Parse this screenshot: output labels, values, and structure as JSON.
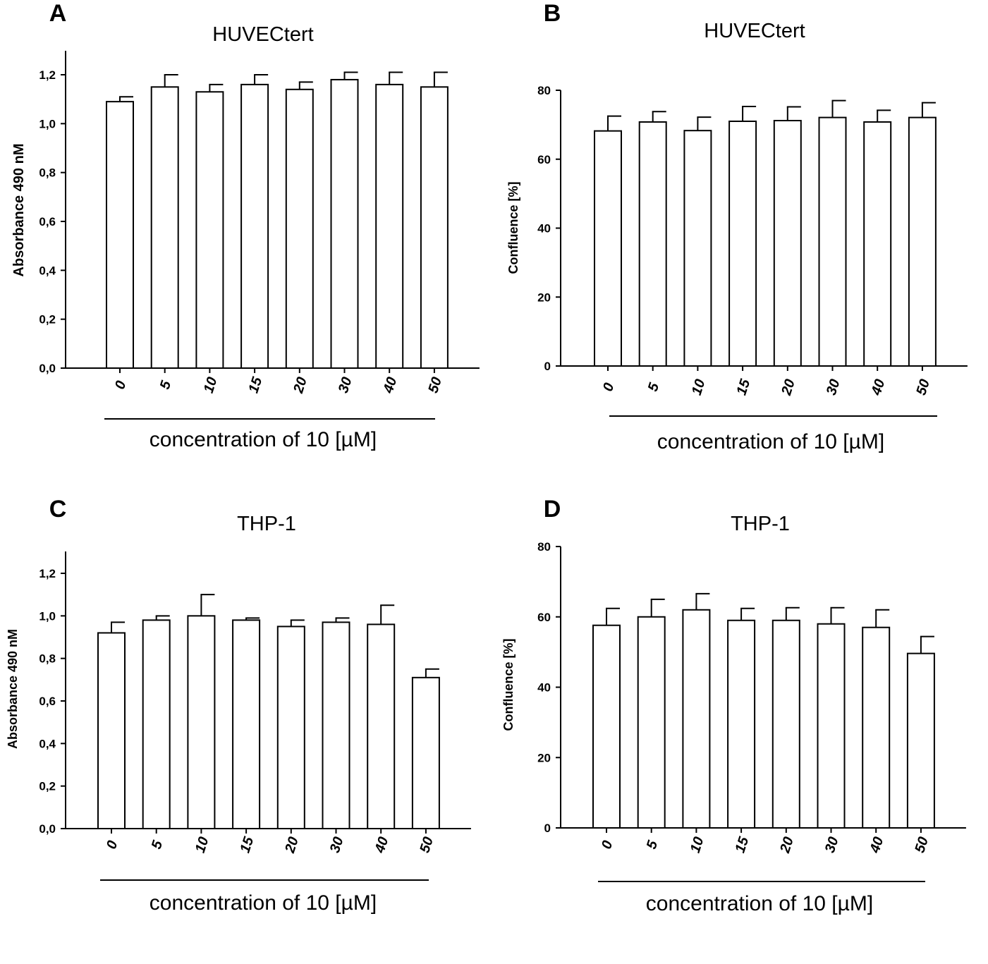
{
  "chart_data": [
    {
      "panel": "A",
      "type": "bar",
      "title": "HUVECtert",
      "ylabel": "Absorbance 490 nM",
      "xlabel": "concentration of 10 [µM]",
      "categories": [
        "0",
        "5",
        "10",
        "15",
        "20",
        "30",
        "40",
        "50"
      ],
      "values": [
        1.09,
        1.15,
        1.13,
        1.16,
        1.14,
        1.18,
        1.16,
        1.15
      ],
      "errors": [
        0.02,
        0.05,
        0.03,
        0.04,
        0.03,
        0.03,
        0.05,
        0.06
      ],
      "ylim": [
        0,
        1.3
      ],
      "yticks": [
        0.0,
        0.2,
        0.4,
        0.6,
        0.8,
        1.0,
        1.2
      ],
      "ytick_labels": [
        "0,0",
        "0,2",
        "0,4",
        "0,6",
        "0,8",
        "1,0",
        "1,2"
      ]
    },
    {
      "panel": "B",
      "type": "bar",
      "title": "HUVECtert",
      "ylabel": "Confluence [%]",
      "xlabel": "concentration of 10 [µM]",
      "categories": [
        "0",
        "5",
        "10",
        "15",
        "20",
        "30",
        "40",
        "50"
      ],
      "values": [
        68.2,
        70.8,
        68.3,
        71.0,
        71.2,
        72.1,
        70.8,
        72.1
      ],
      "errors": [
        4.3,
        3.0,
        3.9,
        4.3,
        4.0,
        4.9,
        3.4,
        4.3
      ],
      "ylim": [
        0,
        80
      ],
      "yticks": [
        0,
        20,
        40,
        60,
        80
      ],
      "ytick_labels": [
        "0",
        "20",
        "40",
        "60",
        "80"
      ]
    },
    {
      "panel": "C",
      "type": "bar",
      "title": "THP-1",
      "ylabel": "Absorbance 490 nM",
      "xlabel": "concentration of 10 [µM]",
      "categories": [
        "0",
        "5",
        "10",
        "15",
        "20",
        "30",
        "40",
        "50"
      ],
      "values": [
        0.92,
        0.98,
        1.0,
        0.98,
        0.95,
        0.97,
        0.96,
        0.71
      ],
      "errors": [
        0.05,
        0.02,
        0.1,
        0.01,
        0.03,
        0.02,
        0.09,
        0.04
      ],
      "ylim": [
        0,
        1.3
      ],
      "yticks": [
        0.0,
        0.2,
        0.4,
        0.6,
        0.8,
        1.0,
        1.2
      ],
      "ytick_labels": [
        "0,0",
        "0,2",
        "0,4",
        "0,6",
        "0,8",
        "1,0",
        "1,2"
      ]
    },
    {
      "panel": "D",
      "type": "bar",
      "title": "THP-1",
      "ylabel": "Confluence [%]",
      "xlabel": "concentration of 10 [µM]",
      "categories": [
        "0",
        "5",
        "10",
        "15",
        "20",
        "30",
        "40",
        "50"
      ],
      "values": [
        57.6,
        60.0,
        62.0,
        59.0,
        59.0,
        58.0,
        57.0,
        49.6
      ],
      "errors": [
        4.8,
        5.0,
        4.6,
        3.4,
        3.6,
        4.6,
        5.0,
        4.8
      ],
      "ylim": [
        0,
        80
      ],
      "yticks": [
        0,
        20,
        40,
        60,
        80
      ],
      "ytick_labels": [
        "0",
        "20",
        "40",
        "60",
        "80"
      ]
    }
  ]
}
